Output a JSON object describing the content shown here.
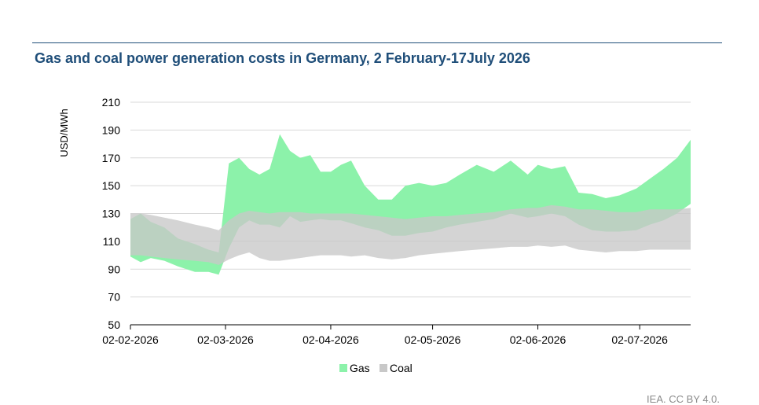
{
  "title": "Gas and coal power generation costs in Germany, 2 February-17July 2026",
  "credit": "IEA. CC BY 4.0.",
  "chart_data": {
    "type": "area",
    "title": "Gas and coal power generation costs in Germany, 2 February-17July 2026",
    "xlabel": "",
    "ylabel": "USD/MWh",
    "ylim": [
      50,
      210
    ],
    "yticks": [
      50,
      70,
      90,
      110,
      130,
      150,
      170,
      190,
      210
    ],
    "xlim": [
      "2026-02-02",
      "2026-07-17"
    ],
    "xticks": [
      "2026-02-02",
      "2026-03-02",
      "2026-04-02",
      "2026-05-02",
      "2026-06-02",
      "2026-07-02"
    ],
    "xtick_labels": [
      "02-02-2026",
      "02-03-2026",
      "02-04-2026",
      "02-05-2026",
      "02-06-2026",
      "02-07-2026"
    ],
    "grid": true,
    "legend_position": "bottom",
    "series": [
      {
        "name": "Gas",
        "color": "#8cf2aa",
        "x": [
          "2026-02-02",
          "2026-02-05",
          "2026-02-08",
          "2026-02-12",
          "2026-02-16",
          "2026-02-21",
          "2026-02-25",
          "2026-02-28",
          "2026-03-03",
          "2026-03-06",
          "2026-03-09",
          "2026-03-12",
          "2026-03-15",
          "2026-03-18",
          "2026-03-21",
          "2026-03-24",
          "2026-03-27",
          "2026-03-30",
          "2026-04-02",
          "2026-04-05",
          "2026-04-08",
          "2026-04-12",
          "2026-04-16",
          "2026-04-20",
          "2026-04-24",
          "2026-04-28",
          "2026-05-02",
          "2026-05-06",
          "2026-05-10",
          "2026-05-15",
          "2026-05-20",
          "2026-05-25",
          "2026-05-30",
          "2026-06-02",
          "2026-06-06",
          "2026-06-10",
          "2026-06-14",
          "2026-06-18",
          "2026-06-22",
          "2026-06-26",
          "2026-07-01",
          "2026-07-05",
          "2026-07-09",
          "2026-07-13",
          "2026-07-17"
        ],
        "low": [
          99,
          95,
          98,
          96,
          92,
          88,
          88,
          86,
          105,
          120,
          125,
          122,
          122,
          120,
          128,
          124,
          125,
          126,
          125,
          125,
          123,
          120,
          118,
          114,
          114,
          116,
          117,
          120,
          122,
          124,
          126,
          130,
          127,
          128,
          130,
          128,
          122,
          118,
          117,
          117,
          118,
          122,
          125,
          130,
          137
        ],
        "high": [
          126,
          130,
          124,
          120,
          112,
          108,
          104,
          102,
          166,
          170,
          162,
          158,
          162,
          187,
          175,
          170,
          172,
          160,
          160,
          165,
          168,
          150,
          140,
          140,
          150,
          152,
          150,
          152,
          158,
          165,
          160,
          168,
          158,
          165,
          162,
          164,
          145,
          144,
          141,
          143,
          148,
          155,
          162,
          170,
          183
        ]
      },
      {
        "name": "Coal",
        "color": "#c8c8c8",
        "x": [
          "2026-02-02",
          "2026-02-05",
          "2026-02-08",
          "2026-02-12",
          "2026-02-16",
          "2026-02-21",
          "2026-02-25",
          "2026-02-28",
          "2026-03-03",
          "2026-03-06",
          "2026-03-09",
          "2026-03-12",
          "2026-03-15",
          "2026-03-18",
          "2026-03-21",
          "2026-03-24",
          "2026-03-27",
          "2026-03-30",
          "2026-04-02",
          "2026-04-05",
          "2026-04-08",
          "2026-04-12",
          "2026-04-16",
          "2026-04-20",
          "2026-04-24",
          "2026-04-28",
          "2026-05-02",
          "2026-05-06",
          "2026-05-10",
          "2026-05-15",
          "2026-05-20",
          "2026-05-25",
          "2026-05-30",
          "2026-06-02",
          "2026-06-06",
          "2026-06-10",
          "2026-06-14",
          "2026-06-18",
          "2026-06-22",
          "2026-06-26",
          "2026-07-01",
          "2026-07-05",
          "2026-07-09",
          "2026-07-13",
          "2026-07-17"
        ],
        "low": [
          100,
          100,
          99,
          98,
          97,
          96,
          95,
          93,
          97,
          100,
          102,
          98,
          96,
          96,
          97,
          98,
          99,
          100,
          100,
          100,
          99,
          100,
          98,
          97,
          98,
          100,
          101,
          102,
          103,
          104,
          105,
          106,
          106,
          107,
          106,
          107,
          104,
          103,
          102,
          103,
          103,
          104,
          104,
          104,
          104
        ],
        "high": [
          130,
          130,
          129,
          127,
          125,
          122,
          120,
          118,
          125,
          130,
          132,
          131,
          130,
          131,
          131,
          131,
          130,
          130,
          130,
          130,
          130,
          129,
          128,
          127,
          126,
          127,
          128,
          128,
          129,
          130,
          131,
          133,
          134,
          134,
          136,
          135,
          133,
          133,
          132,
          131,
          131,
          133,
          133,
          133,
          134
        ]
      }
    ]
  }
}
